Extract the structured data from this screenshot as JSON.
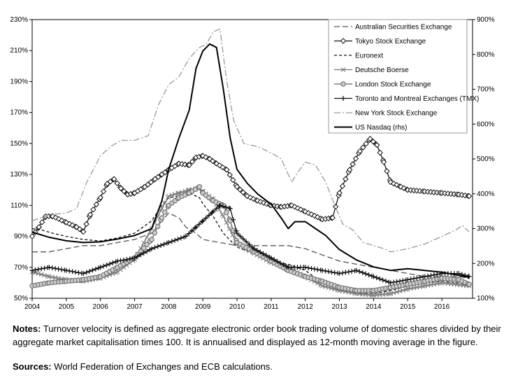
{
  "chart_data": {
    "type": "line",
    "title": "",
    "xlabel": "",
    "ylabel": "",
    "y_left": {
      "min": 50,
      "max": 230,
      "step": 20,
      "unit": "%",
      "ticks": [
        "50%",
        "70%",
        "90%",
        "110%",
        "130%",
        "150%",
        "170%",
        "190%",
        "210%",
        "230%"
      ]
    },
    "y_right": {
      "min": 100,
      "max": 900,
      "step": 100,
      "unit": "%",
      "ticks": [
        "100%",
        "200%",
        "300%",
        "400%",
        "500%",
        "600%",
        "700%",
        "800%",
        "900%"
      ]
    },
    "x_range": [
      2004,
      2016.9
    ],
    "x_ticks": [
      "2004",
      "2005",
      "2006",
      "2007",
      "2008",
      "2009",
      "2010",
      "2011",
      "2012",
      "2013",
      "2014",
      "2015",
      "2016"
    ],
    "gridlines": false,
    "legend_position": "top-right",
    "series": [
      {
        "name": "Australian Securities Exchange",
        "axis": "left",
        "color": "#555555",
        "style": "dashed-long",
        "marker": "none",
        "points": [
          [
            2004.0,
            80
          ],
          [
            2004.5,
            80
          ],
          [
            2005.0,
            82
          ],
          [
            2005.5,
            84
          ],
          [
            2006.0,
            84
          ],
          [
            2006.5,
            86
          ],
          [
            2007.0,
            88
          ],
          [
            2007.5,
            92
          ],
          [
            2007.8,
            100
          ],
          [
            2008.0,
            105
          ],
          [
            2008.3,
            102
          ],
          [
            2008.5,
            96
          ],
          [
            2008.8,
            92
          ],
          [
            2009.0,
            88
          ],
          [
            2009.5,
            86
          ],
          [
            2010.0,
            84
          ],
          [
            2010.5,
            84
          ],
          [
            2011.0,
            84
          ],
          [
            2011.5,
            84
          ],
          [
            2012.0,
            82
          ],
          [
            2012.5,
            78
          ],
          [
            2013.0,
            74
          ],
          [
            2013.5,
            72
          ],
          [
            2014.0,
            70
          ],
          [
            2014.5,
            68
          ],
          [
            2015.0,
            66
          ],
          [
            2015.5,
            64
          ],
          [
            2016.0,
            64
          ],
          [
            2016.5,
            64
          ],
          [
            2016.8,
            63
          ]
        ]
      },
      {
        "name": "Tokyo Stock Exchange",
        "axis": "left",
        "color": "#111111",
        "style": "solid",
        "marker": "diamond",
        "points": [
          [
            2004.0,
            90
          ],
          [
            2004.2,
            96
          ],
          [
            2004.4,
            103
          ],
          [
            2004.6,
            103
          ],
          [
            2005.0,
            99
          ],
          [
            2005.3,
            96
          ],
          [
            2005.5,
            93
          ],
          [
            2005.7,
            104
          ],
          [
            2006.0,
            115
          ],
          [
            2006.2,
            124
          ],
          [
            2006.4,
            127
          ],
          [
            2006.6,
            121
          ],
          [
            2006.8,
            117
          ],
          [
            2007.0,
            118
          ],
          [
            2007.3,
            122
          ],
          [
            2007.6,
            127
          ],
          [
            2007.8,
            130
          ],
          [
            2008.0,
            133
          ],
          [
            2008.3,
            137
          ],
          [
            2008.6,
            136
          ],
          [
            2008.8,
            141
          ],
          [
            2009.0,
            142
          ],
          [
            2009.2,
            140
          ],
          [
            2009.4,
            137
          ],
          [
            2009.7,
            133
          ],
          [
            2010.0,
            122
          ],
          [
            2010.3,
            116
          ],
          [
            2010.6,
            113
          ],
          [
            2011.0,
            110
          ],
          [
            2011.3,
            109
          ],
          [
            2011.6,
            110
          ],
          [
            2012.0,
            106
          ],
          [
            2012.5,
            101
          ],
          [
            2012.8,
            102
          ],
          [
            2013.0,
            118
          ],
          [
            2013.3,
            133
          ],
          [
            2013.6,
            145
          ],
          [
            2013.9,
            153
          ],
          [
            2014.1,
            149
          ],
          [
            2014.3,
            138
          ],
          [
            2014.5,
            125
          ],
          [
            2014.8,
            122
          ],
          [
            2015.0,
            120
          ],
          [
            2015.5,
            119
          ],
          [
            2016.0,
            118
          ],
          [
            2016.5,
            117
          ],
          [
            2016.8,
            116
          ]
        ]
      },
      {
        "name": "Euronext",
        "axis": "left",
        "color": "#111111",
        "style": "dashed-short",
        "marker": "none",
        "points": [
          [
            2004.0,
            95
          ],
          [
            2004.3,
            94
          ],
          [
            2004.6,
            92
          ],
          [
            2005.0,
            90
          ],
          [
            2005.5,
            88
          ],
          [
            2006.0,
            87
          ],
          [
            2006.5,
            89
          ],
          [
            2007.0,
            92
          ],
          [
            2007.5,
            100
          ],
          [
            2007.8,
            110
          ],
          [
            2008.0,
            115
          ],
          [
            2008.3,
            116
          ],
          [
            2008.6,
            118
          ],
          [
            2008.9,
            115
          ],
          [
            2009.0,
            111
          ],
          [
            2009.3,
            103
          ],
          [
            2009.6,
            92
          ],
          [
            2010.0,
            83
          ],
          [
            2010.5,
            79
          ],
          [
            2011.0,
            74
          ],
          [
            2011.5,
            72
          ],
          [
            2012.0,
            68
          ],
          [
            2012.5,
            60
          ],
          [
            2013.0,
            56
          ],
          [
            2013.5,
            53
          ],
          [
            2014.0,
            53
          ],
          [
            2014.5,
            55
          ],
          [
            2015.0,
            58
          ],
          [
            2015.5,
            60
          ],
          [
            2016.0,
            61
          ],
          [
            2016.8,
            59
          ]
        ]
      },
      {
        "name": "Deutsche Boerse",
        "axis": "left",
        "color": "#777777",
        "style": "solid",
        "marker": "x",
        "points": [
          [
            2004.0,
            67
          ],
          [
            2004.5,
            64
          ],
          [
            2005.0,
            62
          ],
          [
            2005.5,
            61
          ],
          [
            2006.0,
            63
          ],
          [
            2006.5,
            67
          ],
          [
            2007.0,
            75
          ],
          [
            2007.5,
            95
          ],
          [
            2007.8,
            108
          ],
          [
            2008.0,
            116
          ],
          [
            2008.3,
            118
          ],
          [
            2008.6,
            120
          ],
          [
            2008.9,
            121
          ],
          [
            2009.0,
            119
          ],
          [
            2009.3,
            114
          ],
          [
            2009.6,
            103
          ],
          [
            2010.0,
            85
          ],
          [
            2010.5,
            79
          ],
          [
            2011.0,
            73
          ],
          [
            2011.5,
            70
          ],
          [
            2012.0,
            64
          ],
          [
            2012.5,
            58
          ],
          [
            2013.0,
            55
          ],
          [
            2013.5,
            53
          ],
          [
            2014.0,
            52
          ],
          [
            2014.5,
            53
          ],
          [
            2015.0,
            56
          ],
          [
            2015.5,
            58
          ],
          [
            2016.0,
            60
          ],
          [
            2016.8,
            58
          ]
        ]
      },
      {
        "name": "London Stock Exchange",
        "axis": "left",
        "color": "#666666",
        "style": "solid",
        "marker": "circle",
        "points": [
          [
            2004.0,
            58
          ],
          [
            2004.5,
            60
          ],
          [
            2005.0,
            61
          ],
          [
            2005.5,
            62
          ],
          [
            2006.0,
            64
          ],
          [
            2006.5,
            70
          ],
          [
            2007.0,
            76
          ],
          [
            2007.5,
            88
          ],
          [
            2007.8,
            102
          ],
          [
            2008.0,
            110
          ],
          [
            2008.3,
            115
          ],
          [
            2008.6,
            118
          ],
          [
            2008.9,
            122
          ],
          [
            2009.0,
            118
          ],
          [
            2009.3,
            113
          ],
          [
            2009.6,
            110
          ],
          [
            2009.8,
            100
          ],
          [
            2010.0,
            86
          ],
          [
            2010.5,
            80
          ],
          [
            2011.0,
            74
          ],
          [
            2011.5,
            68
          ],
          [
            2012.0,
            64
          ],
          [
            2012.5,
            61
          ],
          [
            2013.0,
            57
          ],
          [
            2013.5,
            55
          ],
          [
            2014.0,
            55
          ],
          [
            2014.5,
            57
          ],
          [
            2015.0,
            59
          ],
          [
            2015.5,
            61
          ],
          [
            2016.0,
            63
          ],
          [
            2016.5,
            62
          ],
          [
            2016.8,
            59
          ]
        ]
      },
      {
        "name": "Toronto and Montreal Exchanges (TMX)",
        "axis": "left",
        "color": "#111111",
        "style": "solid",
        "marker": "plus",
        "points": [
          [
            2004.0,
            68
          ],
          [
            2004.5,
            70
          ],
          [
            2005.0,
            68
          ],
          [
            2005.5,
            66
          ],
          [
            2006.0,
            70
          ],
          [
            2006.5,
            74
          ],
          [
            2007.0,
            76
          ],
          [
            2007.5,
            82
          ],
          [
            2008.0,
            86
          ],
          [
            2008.5,
            90
          ],
          [
            2008.8,
            96
          ],
          [
            2009.0,
            100
          ],
          [
            2009.3,
            106
          ],
          [
            2009.5,
            110
          ],
          [
            2009.8,
            108
          ],
          [
            2010.0,
            92
          ],
          [
            2010.5,
            82
          ],
          [
            2011.0,
            76
          ],
          [
            2011.5,
            70
          ],
          [
            2012.0,
            70
          ],
          [
            2012.5,
            68
          ],
          [
            2013.0,
            66
          ],
          [
            2013.5,
            68
          ],
          [
            2014.0,
            64
          ],
          [
            2014.5,
            60
          ],
          [
            2015.0,
            62
          ],
          [
            2015.5,
            64
          ],
          [
            2016.0,
            66
          ],
          [
            2016.5,
            66
          ],
          [
            2016.8,
            64
          ]
        ]
      },
      {
        "name": "New York Stock Exchange",
        "axis": "left",
        "color": "#999999",
        "style": "dash-dot",
        "marker": "none",
        "points": [
          [
            2004.0,
            100
          ],
          [
            2004.5,
            104
          ],
          [
            2005.0,
            105
          ],
          [
            2005.3,
            108
          ],
          [
            2005.6,
            125
          ],
          [
            2006.0,
            142
          ],
          [
            2006.3,
            148
          ],
          [
            2006.6,
            152
          ],
          [
            2007.0,
            152
          ],
          [
            2007.4,
            155
          ],
          [
            2007.7,
            175
          ],
          [
            2008.0,
            188
          ],
          [
            2008.3,
            193
          ],
          [
            2008.6,
            205
          ],
          [
            2008.9,
            212
          ],
          [
            2009.1,
            214
          ],
          [
            2009.3,
            222
          ],
          [
            2009.5,
            224
          ],
          [
            2009.7,
            190
          ],
          [
            2009.9,
            165
          ],
          [
            2010.2,
            150
          ],
          [
            2010.6,
            148
          ],
          [
            2011.0,
            144
          ],
          [
            2011.3,
            140
          ],
          [
            2011.6,
            125
          ],
          [
            2011.8,
            132
          ],
          [
            2012.0,
            138
          ],
          [
            2012.3,
            136
          ],
          [
            2012.6,
            125
          ],
          [
            2012.9,
            108
          ],
          [
            2013.1,
            98
          ],
          [
            2013.4,
            94
          ],
          [
            2013.7,
            86
          ],
          [
            2014.0,
            84
          ],
          [
            2014.3,
            82
          ],
          [
            2014.5,
            80
          ],
          [
            2015.0,
            82
          ],
          [
            2015.5,
            85
          ],
          [
            2016.0,
            90
          ],
          [
            2016.4,
            94
          ],
          [
            2016.6,
            97
          ],
          [
            2016.8,
            93
          ]
        ]
      },
      {
        "name": "US Nasdaq (rhs)",
        "axis": "right",
        "color": "#000000",
        "style": "solid-thick",
        "marker": "none",
        "points": [
          [
            2004.0,
            290
          ],
          [
            2004.5,
            275
          ],
          [
            2005.0,
            265
          ],
          [
            2005.5,
            260
          ],
          [
            2006.0,
            262
          ],
          [
            2006.5,
            270
          ],
          [
            2007.0,
            280
          ],
          [
            2007.5,
            300
          ],
          [
            2007.8,
            380
          ],
          [
            2008.0,
            470
          ],
          [
            2008.3,
            560
          ],
          [
            2008.6,
            640
          ],
          [
            2008.8,
            760
          ],
          [
            2009.0,
            810
          ],
          [
            2009.2,
            830
          ],
          [
            2009.4,
            820
          ],
          [
            2009.6,
            700
          ],
          [
            2009.8,
            560
          ],
          [
            2010.0,
            470
          ],
          [
            2010.3,
            430
          ],
          [
            2010.6,
            400
          ],
          [
            2011.0,
            370
          ],
          [
            2011.3,
            330
          ],
          [
            2011.5,
            300
          ],
          [
            2011.7,
            320
          ],
          [
            2012.0,
            320
          ],
          [
            2012.3,
            300
          ],
          [
            2012.6,
            280
          ],
          [
            2013.0,
            240
          ],
          [
            2013.5,
            210
          ],
          [
            2014.0,
            190
          ],
          [
            2014.5,
            180
          ],
          [
            2015.0,
            185
          ],
          [
            2015.5,
            180
          ],
          [
            2016.0,
            175
          ],
          [
            2016.8,
            160
          ]
        ]
      }
    ]
  },
  "footer": {
    "notes_label": "Notes:",
    "notes_text": " Turnover velocity is defined as aggregate electronic order book trading volume of domestic shares divided by their aggregate market capitalisation times 100. It is annualised and displayed as 12-month moving average in the figure.",
    "sources_label": "Sources:",
    "sources_text": " World Federation of Exchanges and ECB calculations."
  }
}
